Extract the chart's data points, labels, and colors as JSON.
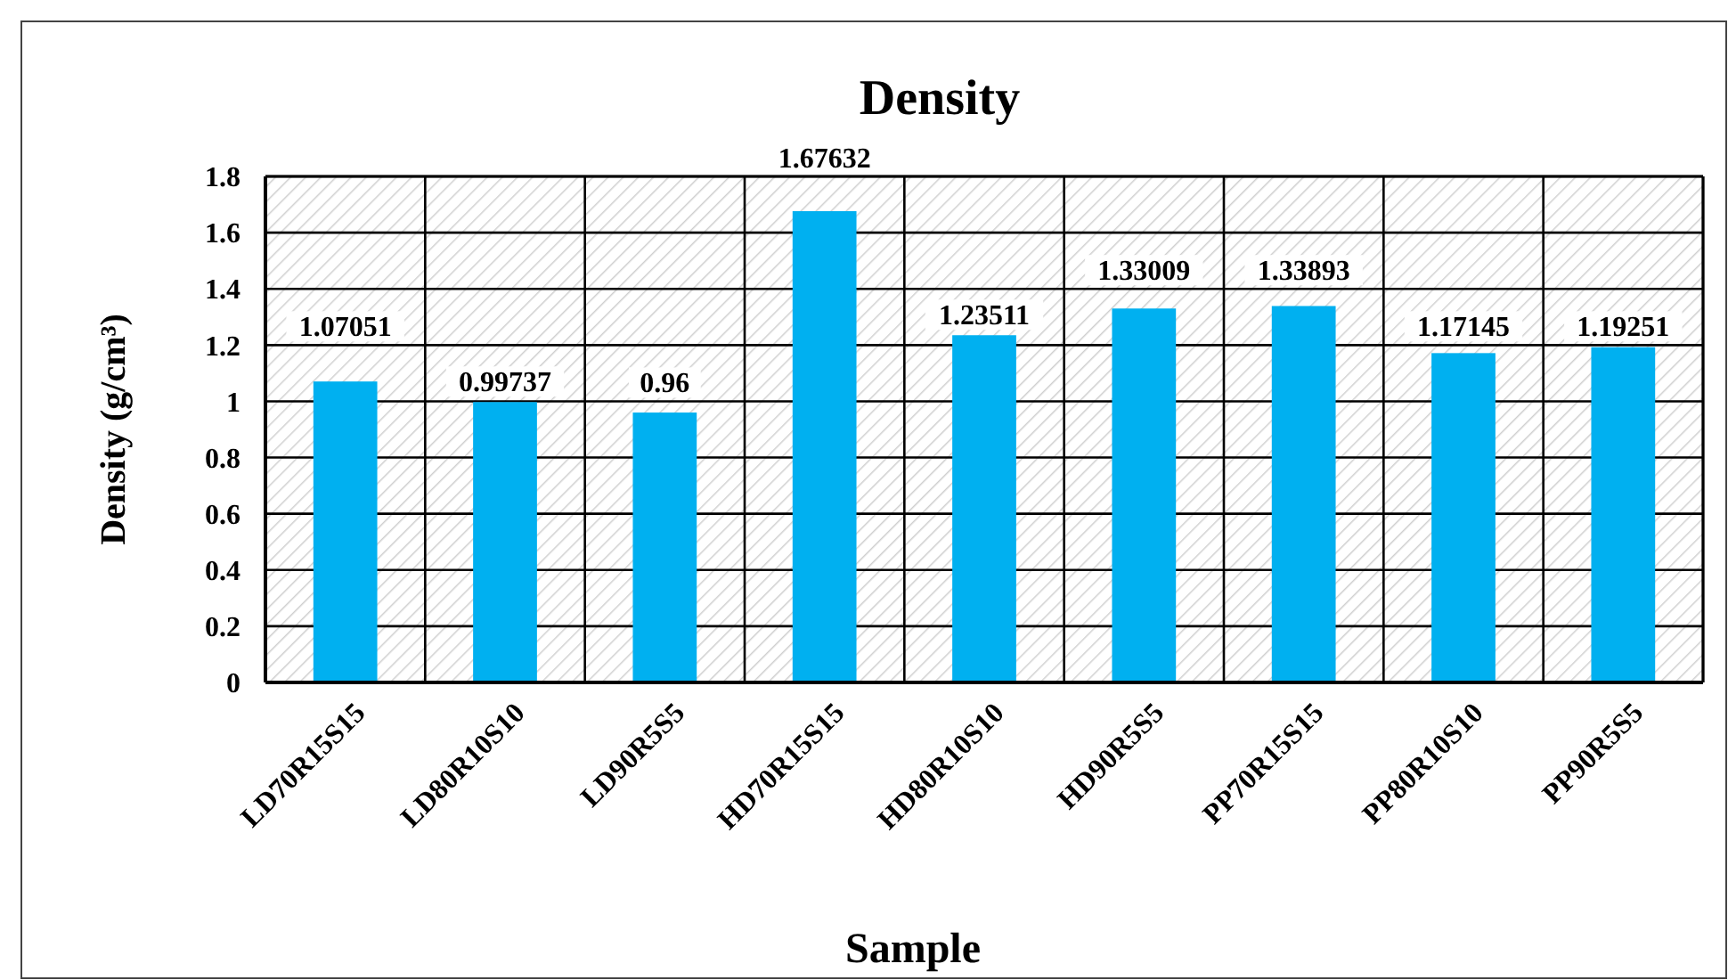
{
  "chart_data": {
    "type": "bar",
    "title": "Density",
    "xlabel": "Sample",
    "ylabel": "Density (g/cm³)",
    "categories": [
      "LD70R15S15",
      "LD80R10S10",
      "LD90R5S5",
      "HD70R15S15",
      "HD80R10S10",
      "HD90R5S5",
      "PP70R15S15",
      "PP80R10S10",
      "PP90R5S5"
    ],
    "values": [
      1.07051,
      0.99737,
      0.96,
      1.67632,
      1.23511,
      1.33009,
      1.33893,
      1.17145,
      1.19251
    ],
    "color": "#00b0f0",
    "ylim": [
      0,
      1.8
    ],
    "yticks": [
      0,
      0.2,
      0.4,
      0.6,
      0.8,
      1,
      1.2,
      1.4,
      1.6,
      1.8
    ],
    "grid": true,
    "data_labels": true
  }
}
